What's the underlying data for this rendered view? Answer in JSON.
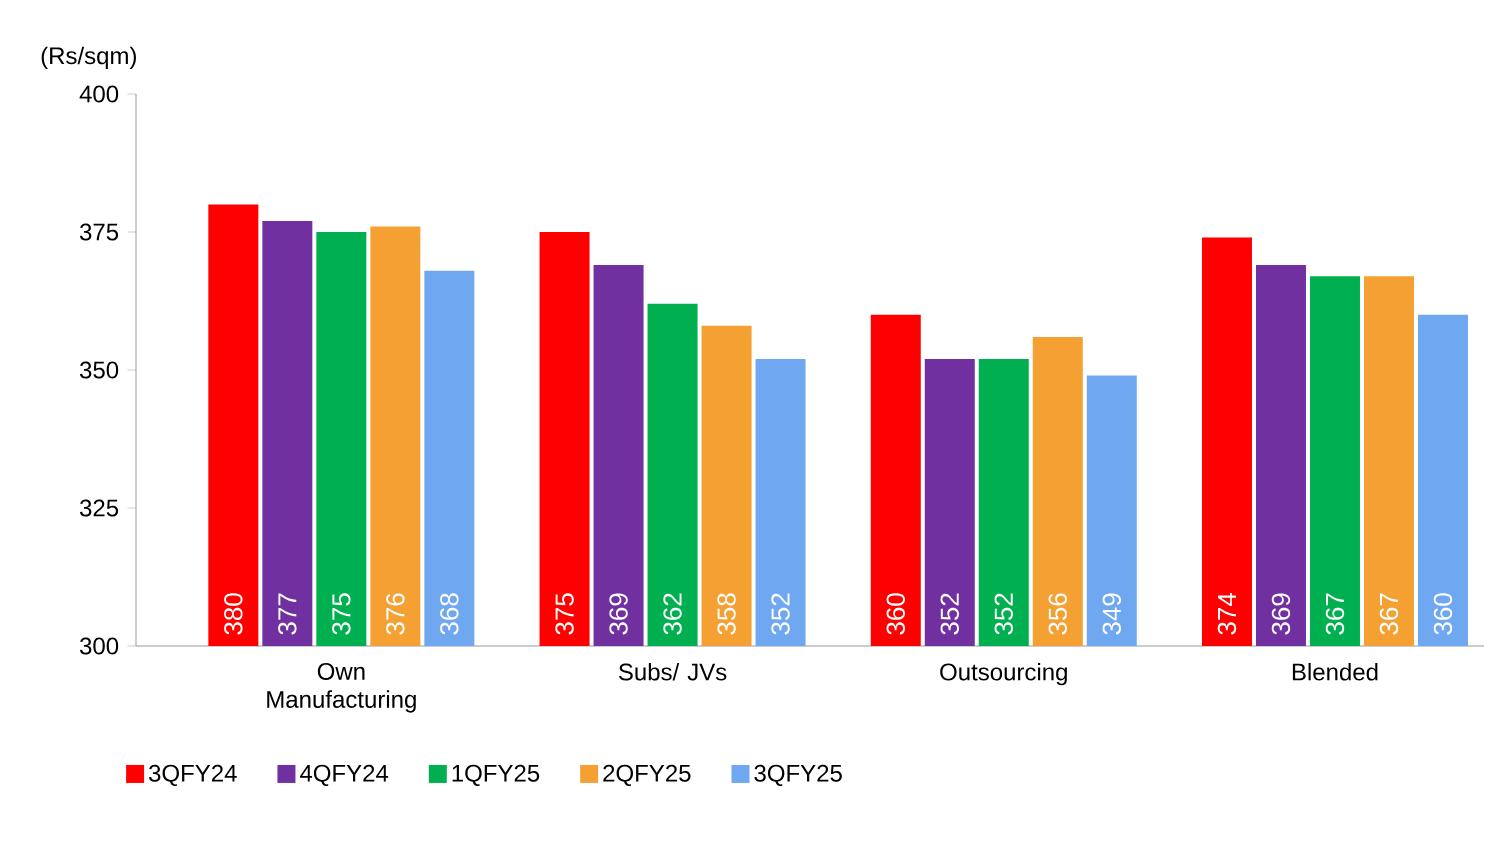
{
  "chart_data": {
    "type": "bar",
    "ylabel": "(Rs/sqm)",
    "categories": [
      "Own Manufacturing",
      "Subs/ JVs",
      "Outsourcing",
      "Blended"
    ],
    "series": [
      {
        "name": "3QFY24",
        "color": "#ff0000",
        "values": [
          380,
          375,
          360,
          374
        ]
      },
      {
        "name": "4QFY24",
        "color": "#7030a0",
        "values": [
          377,
          369,
          352,
          369
        ]
      },
      {
        "name": "1QFY25",
        "color": "#00b050",
        "values": [
          375,
          362,
          352,
          367
        ]
      },
      {
        "name": "2QFY25",
        "color": "#f5a033",
        "values": [
          376,
          358,
          356,
          367
        ]
      },
      {
        "name": "3QFY25",
        "color": "#6fa8f0",
        "values": [
          368,
          352,
          349,
          360
        ]
      }
    ],
    "ylim": [
      300,
      400
    ],
    "yticks": [
      300,
      325,
      350,
      375,
      400
    ],
    "data_labels": true,
    "legend": "bottom",
    "grid": false
  }
}
